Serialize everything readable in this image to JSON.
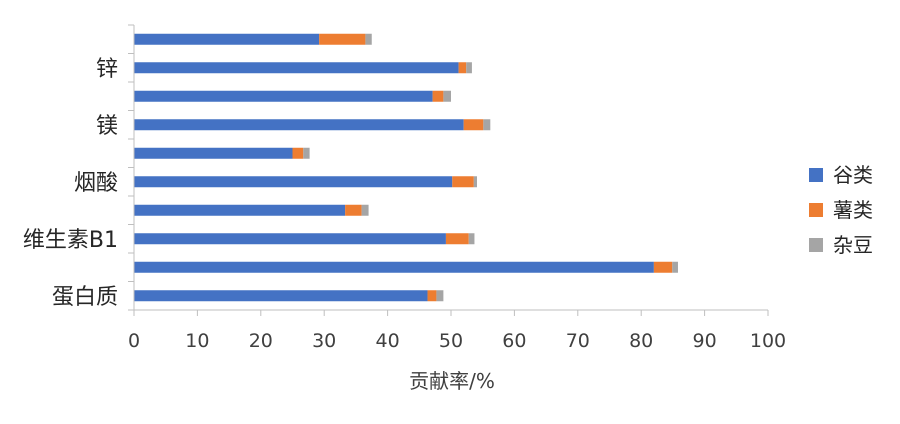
{
  "chart_data": {
    "type": "bar",
    "orientation": "horizontal",
    "stacked": true,
    "categories": [
      "",
      "锌",
      "",
      "镁",
      "",
      "烟酸",
      "",
      "维生素B1",
      "",
      "蛋白质"
    ],
    "series": [
      {
        "name": "谷类",
        "color": "#4472C4",
        "values": [
          29.2,
          51.2,
          47.1,
          52.0,
          25.0,
          50.2,
          33.3,
          49.2,
          82.0,
          46.3
        ]
      },
      {
        "name": "薯类",
        "color": "#ED7D31",
        "values": [
          7.3,
          1.2,
          1.7,
          3.1,
          1.7,
          3.4,
          2.6,
          3.6,
          2.9,
          1.4
        ]
      },
      {
        "name": "杂豆",
        "color": "#A5A5A5",
        "values": [
          1.0,
          0.9,
          1.2,
          1.1,
          1.0,
          0.5,
          1.1,
          0.9,
          0.9,
          1.1
        ]
      }
    ],
    "xlabel": "贡献率/%",
    "ylabel": "",
    "xlim": [
      0,
      100
    ],
    "xticks": [
      "0",
      "10",
      "20",
      "30",
      "40",
      "50",
      "60",
      "70",
      "80",
      "90",
      "100"
    ],
    "grid": false,
    "legend_position": "right"
  }
}
